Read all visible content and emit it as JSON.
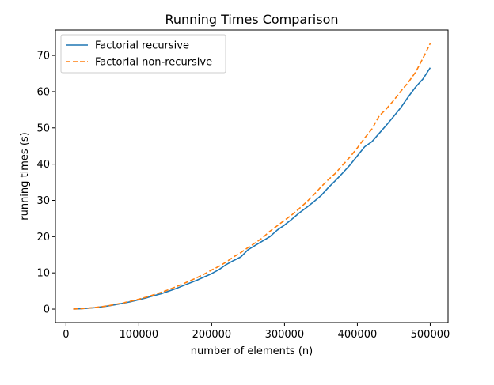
{
  "chart_data": {
    "type": "line",
    "title": "Running Times Comparison",
    "xlabel": "number of elements (n)",
    "ylabel": "running times (s)",
    "xlim": [
      -14500,
      524500
    ],
    "ylim": [
      -3.7,
      77.0
    ],
    "xticks": [
      0,
      100000,
      200000,
      300000,
      400000,
      500000
    ],
    "yticks": [
      0,
      10,
      20,
      30,
      40,
      50,
      60,
      70
    ],
    "grid": false,
    "legend_position": "top-left",
    "x": [
      10000,
      20000,
      30000,
      40000,
      50000,
      60000,
      70000,
      80000,
      90000,
      100000,
      110000,
      120000,
      130000,
      140000,
      150000,
      160000,
      170000,
      180000,
      190000,
      200000,
      210000,
      220000,
      230000,
      240000,
      250000,
      260000,
      270000,
      280000,
      290000,
      300000,
      310000,
      320000,
      330000,
      340000,
      350000,
      360000,
      370000,
      380000,
      390000,
      400000,
      410000,
      420000,
      430000,
      440000,
      450000,
      460000,
      470000,
      480000,
      490000,
      500000
    ],
    "series": [
      {
        "name": "Factorial recursive",
        "color": "#1f77b4",
        "dash": "solid",
        "values": [
          0.03,
          0.1,
          0.25,
          0.4,
          0.65,
          0.95,
          1.3,
          1.7,
          2.1,
          2.6,
          3.1,
          3.7,
          4.2,
          4.9,
          5.6,
          6.4,
          7.2,
          8.0,
          8.9,
          9.8,
          10.9,
          12.3,
          13.4,
          14.4,
          16.4,
          17.6,
          18.8,
          20.0,
          21.8,
          23.2,
          24.8,
          26.5,
          28.0,
          29.6,
          31.3,
          33.5,
          35.5,
          37.6,
          39.8,
          42.3,
          44.8,
          46.2,
          48.5,
          50.8,
          53.2,
          55.7,
          58.6,
          61.3,
          63.5,
          66.6
        ]
      },
      {
        "name": "Factorial non-recursive",
        "color": "#ff7f0e",
        "dash": "dashed",
        "values": [
          0.03,
          0.1,
          0.27,
          0.45,
          0.7,
          1.0,
          1.4,
          1.8,
          2.25,
          2.75,
          3.3,
          3.95,
          4.6,
          5.3,
          6.1,
          6.9,
          7.8,
          8.7,
          9.7,
          10.8,
          11.8,
          13.0,
          14.4,
          15.6,
          17.0,
          18.3,
          19.7,
          21.5,
          23.0,
          24.5,
          26.0,
          27.7,
          29.5,
          31.5,
          33.7,
          35.7,
          37.5,
          39.8,
          42.0,
          44.5,
          47.2,
          49.7,
          53.3,
          55.3,
          57.6,
          60.2,
          62.6,
          65.4,
          69.2,
          73.3
        ]
      }
    ]
  }
}
